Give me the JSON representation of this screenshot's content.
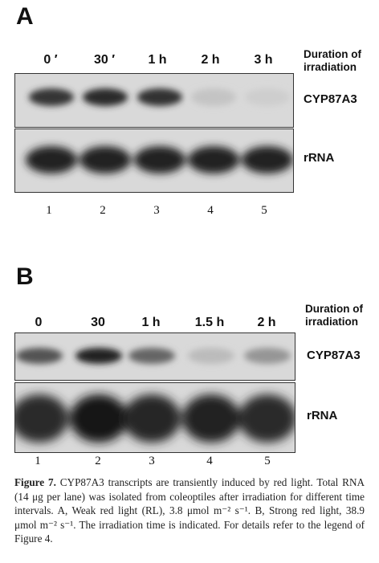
{
  "panelA": {
    "letter": "A",
    "lanes": [
      "0 ′",
      "30 ′",
      "1 h",
      "2 h",
      "3 h"
    ],
    "duration_label_1": "Duration of",
    "duration_label_2": "irradiation",
    "blots": [
      "CYP87A3",
      "rRNA"
    ],
    "lane_numbers": [
      "1",
      "2",
      "3",
      "4",
      "5"
    ],
    "cyp_band_intensity": [
      0.85,
      0.9,
      0.88,
      0.1,
      0.05
    ],
    "rrna_band_intensity": [
      0.95,
      0.95,
      0.95,
      0.95,
      0.95
    ]
  },
  "panelB": {
    "letter": "B",
    "lanes": [
      "0",
      "30",
      "1 h",
      "1.5 h",
      "2 h"
    ],
    "duration_label_1": "Duration of",
    "duration_label_2": "irradiation",
    "blots": [
      "CYP87A3",
      "rRNA"
    ],
    "lane_numbers": [
      "1",
      "2",
      "3",
      "4",
      "5"
    ],
    "cyp_band_intensity": [
      0.7,
      0.95,
      0.6,
      0.15,
      0.35
    ],
    "rrna_band_intensity": [
      0.9,
      1.0,
      0.92,
      0.95,
      0.9
    ]
  },
  "caption": {
    "figure_label": "Figure 7.",
    "text": " CYP87A3 transcripts are transiently induced by red light. Total RNA (14 μg per lane) was isolated from coleoptiles after irradiation for different time intervals. A, Weak red light (RL), 3.8 μmol m⁻² s⁻¹. B, Strong red light, 38.9 μmol m⁻² s⁻¹. The irradiation time is indicated. For details refer to the legend of Figure 4."
  }
}
